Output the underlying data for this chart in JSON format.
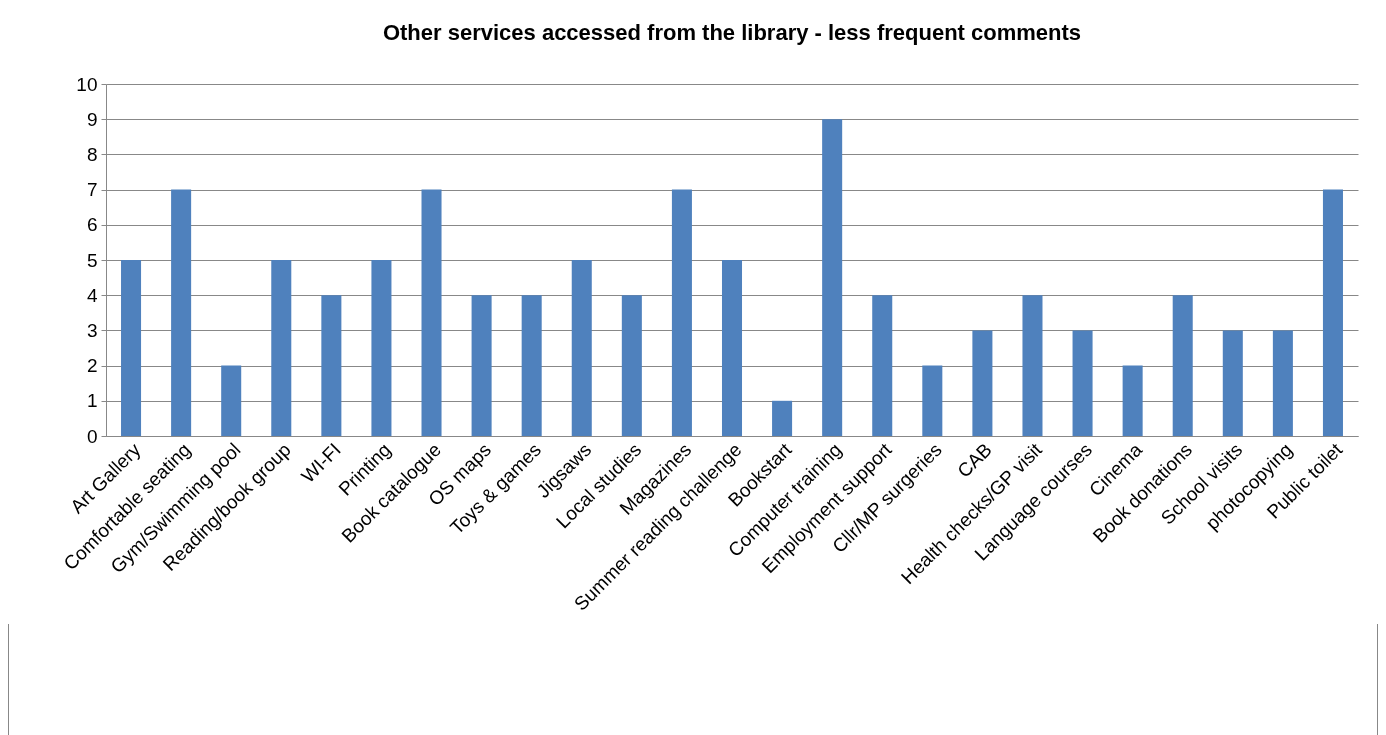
{
  "chart_data": {
    "type": "bar",
    "title": "Other services accessed from the library - less frequent comments",
    "categories": [
      "Art Gallery",
      "Comfortable seating",
      "Gym/Swimming pool",
      "Reading/book group",
      "WI-FI",
      "Printing",
      "Book catalogue",
      "OS maps",
      "Toys & games",
      "Jigsaws",
      "Local studies",
      "Magazines",
      "Summer reading challenge",
      "Bookstart",
      "Computer training",
      "Employment support",
      "Cllr/MP surgeries",
      "CAB",
      "Health checks/GP visit",
      "Language courses",
      "Cinema",
      "Book donations",
      "School visits",
      "photocopying",
      "Public toilet"
    ],
    "values": [
      5,
      7,
      2,
      5,
      4,
      5,
      7,
      4,
      4,
      5,
      4,
      7,
      5,
      1,
      9,
      4,
      2,
      3,
      4,
      3,
      2,
      4,
      3,
      3,
      7
    ],
    "color": "#4f81bd",
    "ylim": [
      0,
      10
    ],
    "yticks": [
      0,
      1,
      2,
      3,
      4,
      5,
      6,
      7,
      8,
      9,
      10
    ],
    "grid": "y"
  }
}
